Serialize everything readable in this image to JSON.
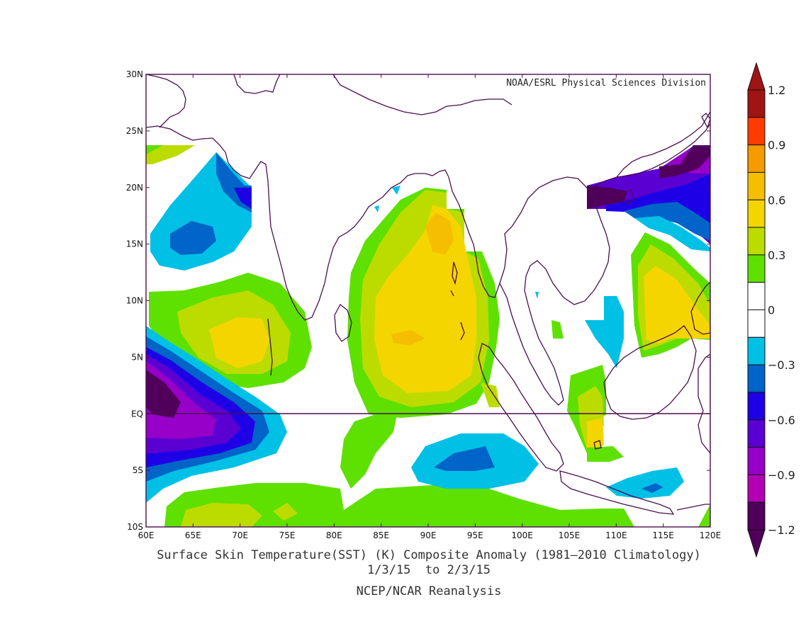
{
  "map": {
    "credit": "NOAA/ESRL Physical Sciences Division",
    "lon_labels": [
      "60E",
      "65E",
      "70E",
      "75E",
      "80E",
      "85E",
      "90E",
      "95E",
      "100E",
      "105E",
      "110E",
      "115E",
      "120E"
    ],
    "lat_labels": [
      "30N",
      "25N",
      "20N",
      "15N",
      "10N",
      "5N",
      "EQ",
      "5S",
      "10S"
    ],
    "lon_range": [
      60,
      120
    ],
    "lat_range": [
      -10,
      30
    ],
    "fill_colors": {
      "yellow": "#f5d500",
      "orange_yellow": "#f5be00",
      "yellow_green": "#bcdc00",
      "green": "#5ee000",
      "cyan": "#00c0e6",
      "blue": "#0064c8",
      "deep_blue": "#1e00e6",
      "indigo": "#5a00d2",
      "violet": "#9600c8",
      "dark_purple": "#50005a",
      "coast": "#4a0e4e"
    }
  },
  "colorbar": {
    "labels": [
      "1.2",
      "0.9",
      "0.6",
      "0.3",
      "0",
      "−0.3",
      "−0.6",
      "−0.9",
      "−1.2"
    ],
    "colors": [
      "#a01414",
      "#ff3c00",
      "#f59a00",
      "#f5be00",
      "#f5d500",
      "#bcdc00",
      "#5ee000",
      "#ffffff",
      "#ffffff",
      "#00c0e6",
      "#0064c8",
      "#1e00e6",
      "#5a00d2",
      "#9600c8",
      "#b400b4",
      "#50005a"
    ]
  },
  "captions": {
    "line1": "Surface Skin Temperature(SST) (K) Composite Anomaly (1981–2010 Climatology)",
    "line2": "1/3/15  to 2/3/15",
    "line3": "NCEP/NCAR Reanalysis"
  }
}
